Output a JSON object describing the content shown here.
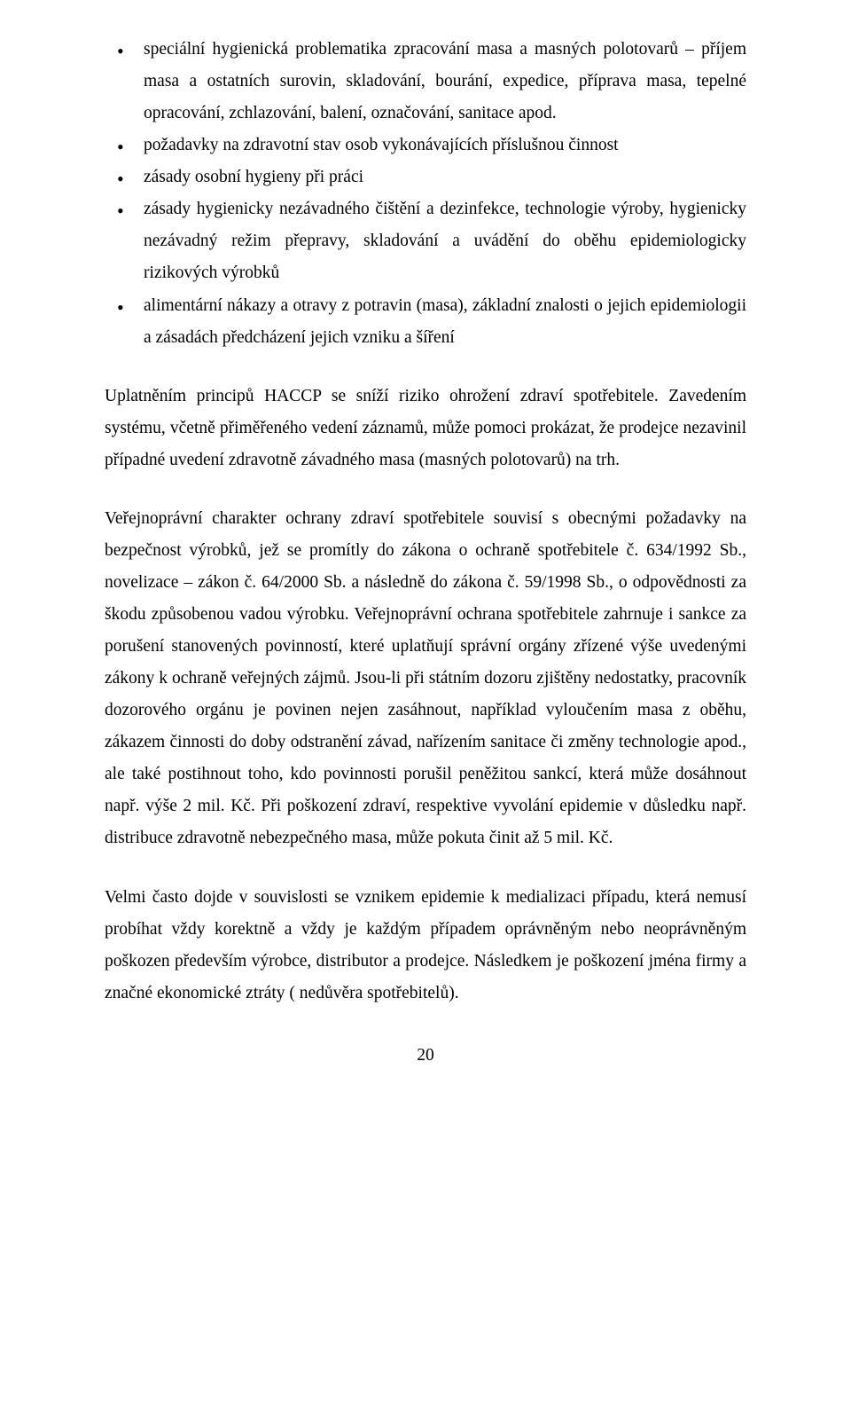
{
  "bullets": {
    "b1": "speciální hygienická problematika zpracování masa a masných polotovarů – příjem masa a ostatních surovin, skladování, bourání, expedice, příprava masa, tepelné opracování, zchlazování, balení, označování, sanitace apod.",
    "b2": "požadavky na zdravotní stav osob vykonávajících příslušnou činnost",
    "b3": "zásady osobní hygieny při práci",
    "b4": "zásady hygienicky nezávadného čištění a dezinfekce, technologie výroby, hygienicky nezávadný režim přepravy, skladování a uvádění do oběhu epidemiologicky rizikových výrobků",
    "b5": "alimentární nákazy a otravy z potravin (masa), základní znalosti o jejich epidemiologii a zásadách předcházení jejich vzniku a šíření"
  },
  "paragraphs": {
    "p1": "Uplatněním principů HACCP se sníží riziko ohrožení zdraví spotřebitele. Zavedením systému, včetně přiměřeného vedení záznamů, může pomoci prokázat, že prodejce nezavinil případné uvedení zdravotně závadného masa (masných polotovarů) na trh.",
    "p2": "Veřejnoprávní charakter ochrany zdraví spotřebitele souvisí s obecnými požadavky na bezpečnost výrobků, jež se promítly do zákona o ochraně spotřebitele č. 634/1992 Sb., novelizace – zákon č. 64/2000 Sb. a následně do zákona č. 59/1998 Sb., o odpovědnosti za škodu způsobenou vadou výrobku. Veřejnoprávní ochrana spotřebitele zahrnuje i sankce za porušení stanovených povinností, které uplatňují správní orgány zřízené výše uvedenými zákony k ochraně veřejných zájmů. Jsou-li při státním dozoru zjištěny nedostatky, pracovník dozorového orgánu je povinen nejen zasáhnout, například vyloučením masa z oběhu, zákazem činnosti do doby odstranění závad, nařízením sanitace či změny technologie apod., ale také postihnout toho, kdo povinnosti porušil peněžitou sankcí, která může dosáhnout např. výše 2 mil. Kč. Při poškození zdraví, respektive vyvolání epidemie v důsledku např. distribuce zdravotně nebezpečného masa, může pokuta činit až 5 mil. Kč.",
    "p3": "Velmi často dojde v souvislosti se vznikem epidemie k medializaci případu, která nemusí probíhat vždy korektně a vždy je každým případem oprávněným nebo neoprávněným poškozen především výrobce, distributor a prodejce. Následkem je poškození jména firmy a značné ekonomické ztráty ( nedůvěra spotřebitelů)."
  },
  "pageNumber": "20"
}
